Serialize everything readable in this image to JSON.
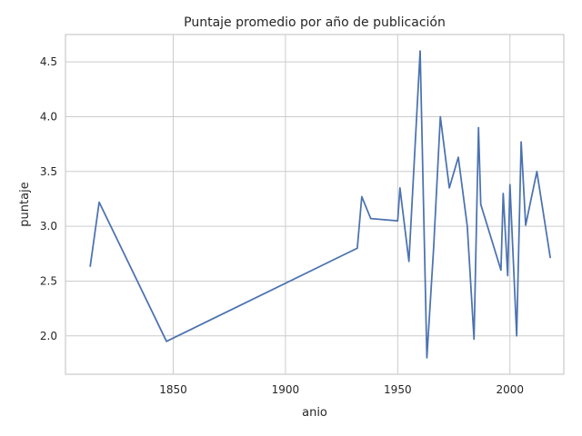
{
  "chart_data": {
    "type": "line",
    "title": "Puntaje promedio por año de publicación",
    "xlabel": "anio",
    "ylabel": "puntaje",
    "xlim": [
      1802,
      2024
    ],
    "ylim": [
      1.65,
      4.75
    ],
    "xticks": [
      1850,
      1900,
      1950,
      2000
    ],
    "yticks": [
      2.0,
      2.5,
      3.0,
      3.5,
      4.0,
      4.5
    ],
    "xtick_labels": [
      "1850",
      "1900",
      "1950",
      "2000"
    ],
    "ytick_labels": [
      "2.0",
      "2.5",
      "3.0",
      "3.5",
      "4.0",
      "4.5"
    ],
    "grid": true,
    "line_color": "#4c72b0",
    "series": [
      {
        "x": [
          1813,
          1817,
          1847,
          1932,
          1934,
          1938,
          1950,
          1951,
          1955,
          1960,
          1963,
          1966,
          1969,
          1973,
          1977,
          1981,
          1984,
          1986,
          1987,
          1996,
          1997,
          1999,
          2000,
          2003,
          2005,
          2007,
          2012,
          2018
        ],
        "y": [
          2.63,
          3.22,
          1.95,
          2.8,
          3.27,
          3.07,
          3.05,
          3.35,
          2.68,
          4.6,
          1.8,
          2.8,
          4.0,
          3.35,
          3.63,
          3.0,
          1.97,
          3.9,
          3.2,
          2.6,
          3.3,
          2.55,
          3.38,
          2.0,
          3.77,
          3.01,
          3.5,
          2.71
        ]
      }
    ]
  }
}
